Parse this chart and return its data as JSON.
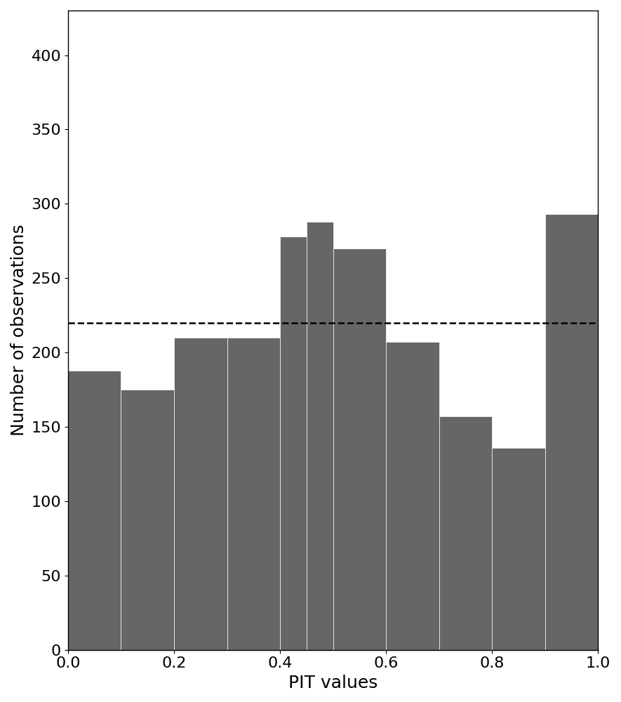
{
  "bar_heights": [
    188,
    175,
    210,
    210,
    278,
    288,
    270,
    207,
    157,
    136,
    293
  ],
  "bin_edges": [
    0.0,
    0.1,
    0.2,
    0.3,
    0.4,
    0.45,
    0.5,
    0.6,
    0.7,
    0.8,
    0.9,
    1.0
  ],
  "bar_color": "#666666",
  "bar_edgecolor": "#ffffff",
  "dashed_line_y": 220,
  "dashed_line_color": "#000000",
  "xlabel": "PIT values",
  "ylabel": "Number of observations",
  "xlim": [
    0,
    1
  ],
  "ylim": [
    0,
    430
  ],
  "yticks": [
    0,
    50,
    100,
    150,
    200,
    250,
    300,
    350,
    400
  ],
  "xticks": [
    0.0,
    0.2,
    0.4,
    0.6,
    0.8,
    1.0
  ],
  "xlabel_fontsize": 18,
  "ylabel_fontsize": 18,
  "tick_fontsize": 16,
  "figsize": [
    8.85,
    10.0
  ],
  "dpi": 100
}
